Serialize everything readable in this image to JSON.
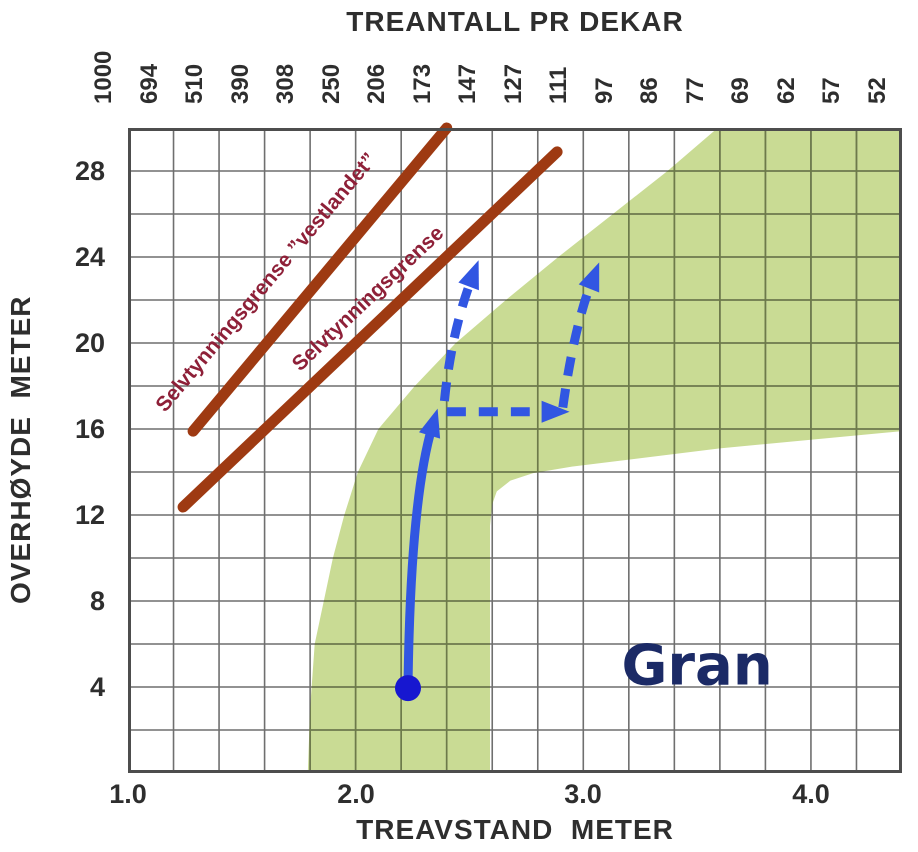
{
  "titles": {
    "top_axis": "TREANTALL PR DEKAR",
    "left_axis": "OVERHØYDE  METER",
    "bottom_axis": "TREAVSTAND  METER"
  },
  "colors": {
    "green_region": "#c9db94",
    "grid": "#6f6f6f",
    "grid_on_green": "#6d7a49",
    "border": "#4d4d4d",
    "red_line": "#9e3a12",
    "red_label": "#8e2038",
    "blue": "#3156e2",
    "blue_dot": "#1717d0",
    "species_label": "#1b2a66",
    "axis_text": "#2e2e2e"
  },
  "chart_data": {
    "type": "area",
    "title": "TREANTALL PR DEKAR",
    "x_axis": {
      "label": "TREAVSTAND  METER",
      "range": [
        1.0,
        4.4
      ],
      "tick_values": [
        1.0,
        2.0,
        3.0,
        4.0
      ],
      "tick_labels": [
        "1.0",
        "2.0",
        "3.0",
        "4.0"
      ],
      "grid_step": 0.2
    },
    "y_axis": {
      "label": "OVERHØYDE METER",
      "range": [
        0,
        30
      ],
      "tick_values": [
        4,
        8,
        12,
        16,
        20,
        24,
        28
      ],
      "tick_labels": [
        "4",
        "8",
        "12",
        "16",
        "20",
        "24",
        "28"
      ],
      "grid_step": 2
    },
    "top_axis": {
      "label": "TREANTALL PR DEKAR",
      "tick_values": [
        1.0,
        1.2,
        1.4,
        1.6,
        1.8,
        2.0,
        2.2,
        2.4,
        2.6,
        2.8,
        3.0,
        3.2,
        3.4,
        3.6,
        3.8,
        4.0,
        4.2,
        4.4
      ],
      "tick_labels": [
        "1000",
        "694",
        "510",
        "390",
        "308",
        "250",
        "206",
        "173",
        "147",
        "127",
        "111",
        "97",
        "86",
        "77",
        "69",
        "62",
        "57",
        "52"
      ]
    },
    "green_region": {
      "name": "Gran recommended stand-density zone",
      "outline": [
        [
          1.79,
          0
        ],
        [
          1.8,
          3
        ],
        [
          1.82,
          6
        ],
        [
          1.86,
          8
        ],
        [
          1.9,
          10
        ],
        [
          1.95,
          12
        ],
        [
          2.01,
          14
        ],
        [
          2.1,
          16
        ],
        [
          2.26,
          18
        ],
        [
          2.44,
          20
        ],
        [
          2.66,
          22
        ],
        [
          2.89,
          24
        ],
        [
          3.13,
          26
        ],
        [
          3.37,
          28
        ],
        [
          3.59,
          30
        ],
        [
          4.4,
          30
        ],
        [
          4.4,
          15.9
        ],
        [
          3.6,
          15.1
        ],
        [
          2.95,
          14.25
        ],
        [
          2.78,
          13.95
        ],
        [
          2.68,
          13.6
        ],
        [
          2.62,
          13.1
        ],
        [
          2.6,
          12.5
        ],
        [
          2.59,
          11.5
        ],
        [
          2.59,
          0
        ]
      ]
    },
    "selfthinning_lines": [
      {
        "label": "Selvtynningsgrense ”vestlandet”",
        "from": [
          1.286,
          15.9
        ],
        "to": [
          2.4,
          30.0
        ],
        "label_anchor": {
          "x": 1.163,
          "y": 16.74,
          "angle": -50
        }
      },
      {
        "label": "Selvtynningsgrense",
        "from": [
          1.242,
          12.37
        ],
        "to": [
          2.885,
          28.89
        ],
        "label_anchor": {
          "x": 1.756,
          "y": 18.65,
          "angle": -43.5
        }
      }
    ],
    "management_path": {
      "start_dot": {
        "x": 2.23,
        "y": 3.95
      },
      "solid_arrow": {
        "from": [
          2.23,
          3.95
        ],
        "ctrl": [
          2.24,
          12.7
        ],
        "to": [
          2.36,
          16.95
        ]
      },
      "dashed_arrows": [
        {
          "from": [
            2.39,
            17.3
          ],
          "ctrl": [
            2.42,
            20.5
          ],
          "to": [
            2.54,
            23.85
          ]
        },
        {
          "from": [
            2.4,
            16.8
          ],
          "ctrl": [
            2.66,
            16.8
          ],
          "to": [
            2.94,
            16.8
          ]
        },
        {
          "from": [
            2.91,
            17.0
          ],
          "ctrl": [
            2.96,
            20.8
          ],
          "to": [
            3.07,
            23.75
          ]
        }
      ]
    },
    "species_label": {
      "text": "Gran",
      "x": 3.5,
      "y": 5.05
    }
  }
}
